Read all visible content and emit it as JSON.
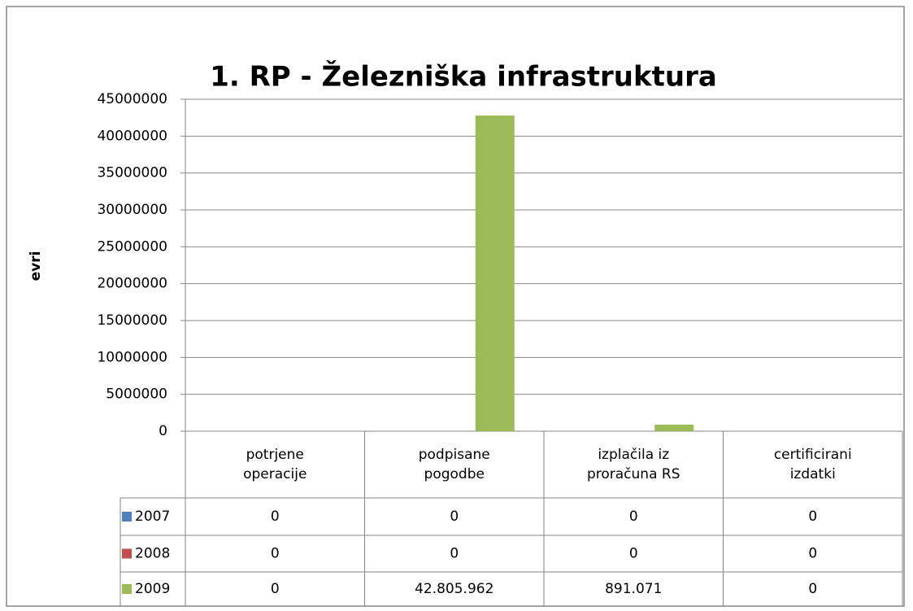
{
  "chart_data": {
    "type": "bar",
    "title": "1. RP - Železniška infrastruktura",
    "y_label": "evri",
    "categories": [
      "potrjene operacije",
      "podpisane pogodbe",
      "izplačila iz proračuna RS",
      "certificirani izdatki"
    ],
    "series": [
      {
        "name": "2007",
        "color": "#4f81bd",
        "values": [
          0,
          0,
          0,
          0
        ]
      },
      {
        "name": "2008",
        "color": "#c0504d",
        "values": [
          0,
          0,
          0,
          0
        ]
      },
      {
        "name": "2009",
        "color": "#9bbb59",
        "values": [
          0,
          42805962,
          891071,
          0
        ],
        "value_labels": [
          "0",
          "42.805.962",
          "891.071",
          "0"
        ]
      }
    ],
    "ylim": [
      0,
      45000000
    ],
    "yticks": [
      0,
      5000000,
      10000000,
      15000000,
      20000000,
      25000000,
      30000000,
      35000000,
      40000000,
      45000000
    ],
    "grid": true,
    "data_table": true
  }
}
